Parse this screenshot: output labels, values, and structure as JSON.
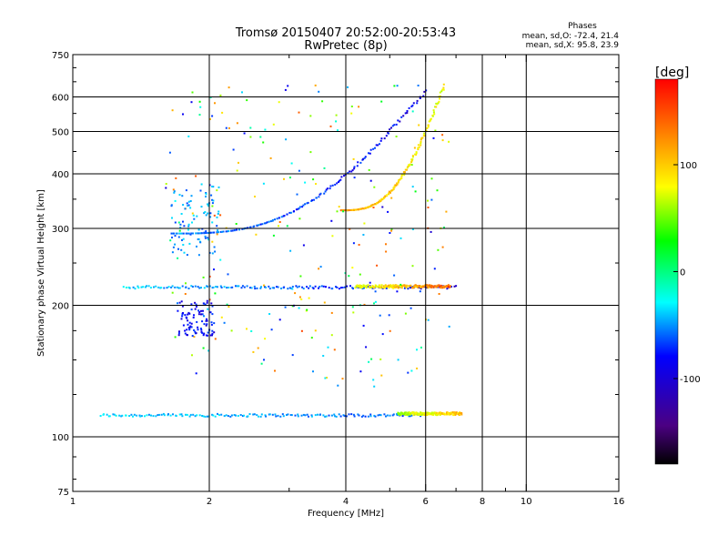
{
  "chart_data": {
    "type": "scatter",
    "title": "Tromsø 20150407 20:52:00-20:53:43",
    "subtitle": "RwPretec (8p)",
    "xlabel": "Frequency [MHz]",
    "ylabel": "Stationary phase Virtual Height [km]",
    "x_scale": "log2",
    "y_scale": "log",
    "xlim": [
      1,
      16
    ],
    "ylim": [
      75,
      750
    ],
    "x_ticks": [
      1,
      2,
      4,
      6,
      8,
      10,
      16
    ],
    "y_ticks": [
      75,
      100,
      200,
      300,
      400,
      500,
      600,
      750
    ],
    "x_grid": [
      2,
      4,
      6,
      8,
      10
    ],
    "y_grid": [
      100,
      200,
      300,
      400,
      500,
      600
    ],
    "x_minor_ticks": [
      3,
      5,
      7,
      9
    ],
    "y_minor_ticks": [
      80,
      90,
      125,
      150,
      175,
      250,
      350,
      450,
      550,
      650,
      700
    ],
    "legend_heading": "Phases",
    "legend_lines": [
      "mean, sd,O: -72.4, 21.4",
      "mean, sd,X:  95.8, 23.9"
    ],
    "colorbar": {
      "label": "[deg]",
      "range": [
        -180,
        180
      ],
      "ticks": [
        100,
        0,
        -100
      ],
      "colors": [
        "#000000",
        "#4b0082",
        "#0000ff",
        "#00ffff",
        "#00ff00",
        "#ffff00",
        "#ff8000",
        "#ff0000"
      ]
    },
    "series": [
      {
        "name": "E-layer trace",
        "x_range": [
          1.15,
          5.9
        ],
        "height": 112,
        "phase_start": -40,
        "phase_end": -75
      },
      {
        "name": "E-layer X trace",
        "x_range": [
          5.2,
          7.2
        ],
        "height": 113,
        "phase_start": 60,
        "phase_end": 120
      },
      {
        "name": "Es trace",
        "x_range": [
          1.3,
          7.0
        ],
        "height": 220,
        "phase_start": -40,
        "phase_end": -110
      },
      {
        "name": "Es X trace",
        "x_range": [
          4.2,
          6.8
        ],
        "height": 221,
        "phase_start": 80,
        "phase_end": 150
      },
      {
        "name": "F-layer O trace",
        "x_range": [
          1.65,
          6.0
        ],
        "h_start": 292,
        "h_end": 620,
        "phase_start": -60,
        "phase_end": -110
      },
      {
        "name": "F-layer X trace",
        "x_range": [
          3.9,
          6.6
        ],
        "h_start": 330,
        "h_end": 640,
        "phase_start": 130,
        "phase_end": 85
      }
    ]
  }
}
